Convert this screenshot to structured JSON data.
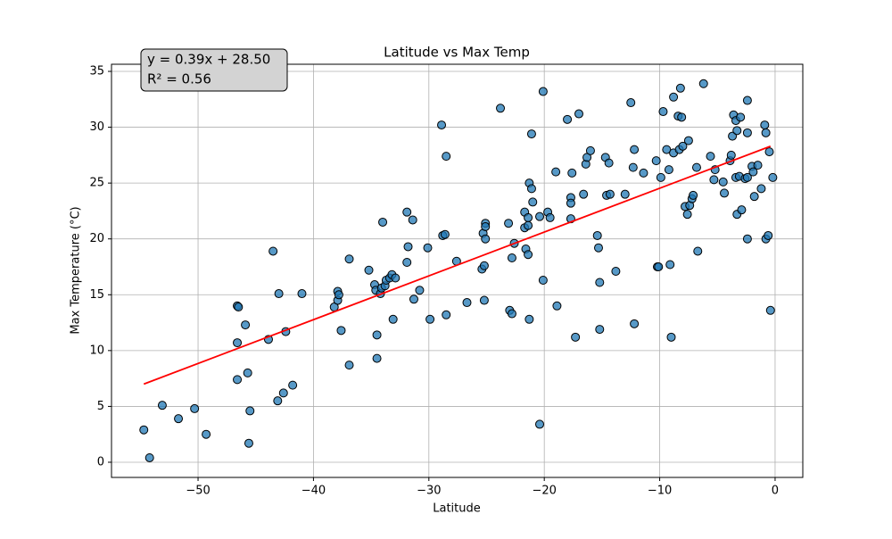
{
  "chart_data": {
    "type": "scatter",
    "title": "Latitude vs Max Temp",
    "x_label": "Latitude",
    "y_label": "Max Temperature (°C)",
    "annotation": [
      "y = 0.39x + 28.50",
      "R² = 0.56"
    ],
    "color": "#1f77b4",
    "edge_color": "#000000",
    "grid": true,
    "xlim": [
      -57.5,
      2.4
    ],
    "ylim": [
      -1.36,
      35.64
    ],
    "xticks": [
      {
        "value": -50,
        "label": "−50"
      },
      {
        "value": -40,
        "label": "−40"
      },
      {
        "value": -30,
        "label": "−30"
      },
      {
        "value": -20,
        "label": "−20"
      },
      {
        "value": -10,
        "label": "−10"
      },
      0
    ],
    "yticks": [
      0,
      5,
      10,
      15,
      20,
      25,
      30,
      35
    ],
    "x": [
      -54.7,
      -54.2,
      -53.1,
      -51.7,
      -50.3,
      -49.3,
      -46.6,
      -46.5,
      -46.6,
      -46.6,
      -45.9,
      -45.7,
      -45.5,
      -45.6,
      -43.9,
      -43.5,
      -43.0,
      -43.1,
      -42.6,
      -42.4,
      -41.8,
      -41.0,
      -38.2,
      -37.9,
      -37.9,
      -37.8,
      -37.6,
      -36.9,
      -36.9,
      -35.2,
      -34.7,
      -34.6,
      -34.5,
      -34.5,
      -34.2,
      -34.0,
      -34.1,
      -33.8,
      -33.7,
      -33.4,
      -33.2,
      -32.9,
      -33.1,
      -31.9,
      -31.9,
      -31.8,
      -31.4,
      -31.3,
      -30.8,
      -30.1,
      -29.9,
      -28.9,
      -28.8,
      -28.6,
      -28.5,
      -28.5,
      -27.6,
      -26.7,
      -25.4,
      -25.3,
      -25.2,
      -25.2,
      -25.1,
      -25.1,
      -25.1,
      -23.8,
      -23.1,
      -23.0,
      -22.8,
      -22.8,
      -22.6,
      -21.7,
      -21.7,
      -21.6,
      -21.4,
      -21.4,
      -21.4,
      -21.3,
      -21.3,
      -21.1,
      -21.1,
      -21.0,
      -20.4,
      -20.4,
      -20.1,
      -20.1,
      -19.7,
      -19.5,
      -19.0,
      -18.9,
      -18.0,
      -17.7,
      -17.7,
      -17.7,
      -17.6,
      -17.3,
      -17.0,
      -16.6,
      -16.4,
      -16.3,
      -16.0,
      -15.4,
      -15.3,
      -15.2,
      -15.2,
      -14.7,
      -14.6,
      -14.3,
      -14.4,
      -13.8,
      -13.0,
      -12.5,
      -12.3,
      -12.2,
      -12.2,
      -11.4,
      -10.3,
      -10.2,
      -10.1,
      -9.9,
      -9.7,
      -9.4,
      -9.2,
      -9.1,
      -9.0,
      -8.8,
      -8.8,
      -8.4,
      -8.3,
      -8.2,
      -8.1,
      -8.0,
      -7.8,
      -7.6,
      -7.5,
      -7.4,
      -7.2,
      -7.1,
      -6.8,
      -6.7,
      -6.2,
      -5.6,
      -5.3,
      -5.2,
      -4.5,
      -4.4,
      -3.9,
      -3.8,
      -3.7,
      -3.6,
      -3.4,
      -3.3,
      -3.4,
      -3.3,
      -3.1,
      -3.0,
      -2.9,
      -2.6,
      -2.4,
      -2.4,
      -2.4,
      -2.4,
      -2.0,
      -1.9,
      -1.8,
      -1.5,
      -1.2,
      -0.9,
      -0.8,
      -0.8,
      -0.6,
      -0.5,
      -0.4,
      -0.2
    ],
    "values": [
      2.9,
      0.4,
      5.1,
      3.9,
      4.8,
      2.5,
      14.0,
      13.9,
      10.7,
      7.4,
      12.3,
      8.0,
      4.6,
      1.7,
      11.0,
      18.9,
      15.1,
      5.5,
      6.2,
      11.7,
      6.9,
      15.1,
      13.9,
      15.3,
      14.5,
      15.0,
      11.8,
      18.2,
      8.7,
      17.2,
      15.9,
      15.4,
      11.4,
      9.3,
      15.1,
      21.5,
      15.6,
      15.8,
      16.3,
      16.5,
      16.8,
      16.5,
      12.8,
      22.4,
      17.9,
      19.3,
      21.7,
      14.6,
      15.4,
      19.2,
      12.8,
      30.2,
      20.3,
      20.4,
      27.4,
      13.2,
      18.0,
      14.3,
      17.3,
      20.5,
      14.5,
      17.6,
      21.4,
      21.1,
      20.0,
      31.7,
      21.4,
      13.6,
      18.3,
      13.3,
      19.6,
      22.4,
      21.0,
      19.1,
      21.9,
      21.2,
      18.6,
      12.8,
      25.0,
      24.5,
      29.4,
      23.3,
      22.0,
      3.4,
      33.2,
      16.3,
      22.4,
      21.9,
      26.0,
      14.0,
      30.7,
      23.7,
      23.2,
      21.8,
      25.9,
      11.2,
      31.2,
      24.0,
      26.7,
      27.3,
      27.9,
      20.3,
      19.2,
      16.1,
      11.9,
      27.3,
      23.9,
      24.0,
      26.8,
      17.1,
      24.0,
      32.2,
      26.4,
      28.0,
      12.4,
      25.9,
      27.0,
      17.5,
      17.5,
      25.5,
      31.4,
      28.0,
      26.2,
      17.7,
      11.2,
      27.7,
      32.7,
      31.0,
      28.0,
      33.5,
      30.9,
      28.3,
      22.9,
      22.2,
      28.8,
      23.0,
      23.6,
      23.9,
      26.4,
      18.9,
      33.9,
      27.4,
      25.3,
      26.2,
      25.1,
      24.1,
      27.0,
      27.5,
      29.2,
      31.1,
      30.6,
      29.7,
      25.5,
      22.2,
      25.6,
      30.9,
      22.6,
      25.4,
      20.0,
      25.5,
      29.5,
      32.4,
      26.5,
      26.0,
      23.8,
      26.6,
      24.5,
      30.2,
      29.5,
      20.0,
      20.3,
      27.8,
      13.6,
      25.5
    ],
    "fit_line": {
      "color": "#ff0000",
      "x": [
        -54.7,
        -0.4
      ],
      "values": [
        7.0,
        28.3
      ]
    }
  }
}
